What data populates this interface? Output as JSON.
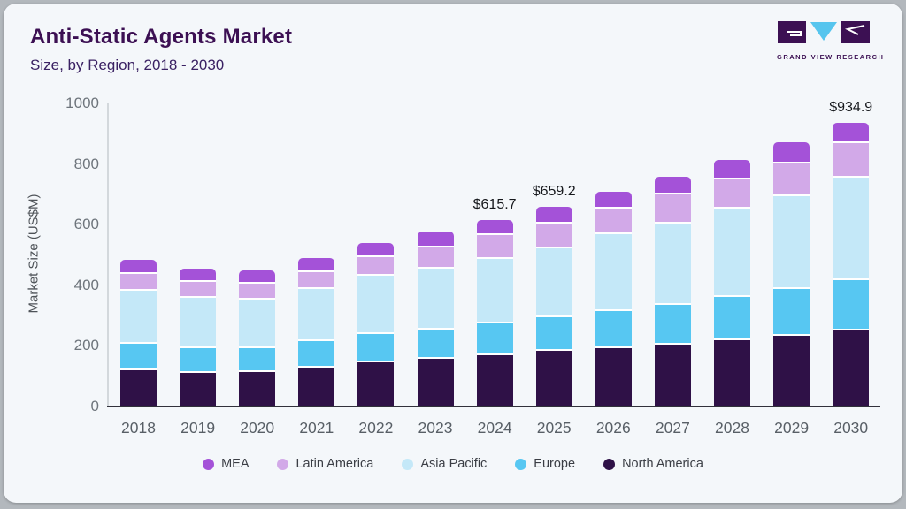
{
  "header": {
    "title": "Anti-Static Agents Market",
    "subtitle": "Size, by Region, 2018 - 2030"
  },
  "logo": {
    "text": "GRAND VIEW RESEARCH",
    "brand_dark": "#3c1053",
    "brand_cyan": "#56c5ee"
  },
  "chart_data": {
    "type": "bar",
    "stacked": true,
    "title": "Anti-Static Agents Market Size, by Region, 2018 - 2030",
    "xlabel": "",
    "ylabel": "Market Size (US$M)",
    "ylim": [
      0,
      1000
    ],
    "yticks": [
      0,
      200,
      400,
      600,
      800,
      1000
    ],
    "grid": false,
    "legend_position": "bottom",
    "categories": [
      "2018",
      "2019",
      "2020",
      "2021",
      "2022",
      "2023",
      "2024",
      "2025",
      "2026",
      "2027",
      "2028",
      "2029",
      "2030"
    ],
    "series": [
      {
        "name": "North America",
        "color": "#2f1147",
        "values": [
          119,
          112,
          113,
          128,
          146,
          158,
          168,
          183,
          191,
          204,
          219,
          233,
          251
        ]
      },
      {
        "name": "Europe",
        "color": "#57c7f2",
        "values": [
          88,
          80,
          79,
          88,
          92,
          95,
          106,
          112,
          123,
          131,
          142,
          154,
          167
        ]
      },
      {
        "name": "Asia Pacific",
        "color": "#c4e8f8",
        "values": [
          175,
          166,
          162,
          171,
          192,
          202,
          213,
          227,
          254,
          268,
          291,
          308,
          338
        ]
      },
      {
        "name": "Latin America",
        "color": "#d2a9e8",
        "values": [
          55,
          54,
          51,
          55,
          64,
          71,
          77.7,
          81,
          84,
          97,
          96,
          108,
          111.9
        ]
      },
      {
        "name": "MEA",
        "color": "#a452d8",
        "values": [
          48,
          43,
          43,
          48,
          46,
          51,
          51,
          56.2,
          55,
          58,
          65,
          70,
          67
        ]
      }
    ],
    "totals": [
      485,
      455,
      448,
      490,
      540,
      577,
      615.7,
      659.2,
      707,
      758,
      813,
      873,
      934.9
    ],
    "annotations": [
      {
        "index": 6,
        "text": "$615.7"
      },
      {
        "index": 7,
        "text": "$659.2"
      },
      {
        "index": 12,
        "text": "$934.9"
      }
    ]
  },
  "legend": {
    "items": [
      {
        "label": "MEA",
        "color": "#a452d8"
      },
      {
        "label": "Latin America",
        "color": "#d2a9e8"
      },
      {
        "label": "Asia Pacific",
        "color": "#c4e8f8"
      },
      {
        "label": "Europe",
        "color": "#57c7f2"
      },
      {
        "label": "North America",
        "color": "#2f1147"
      }
    ]
  }
}
